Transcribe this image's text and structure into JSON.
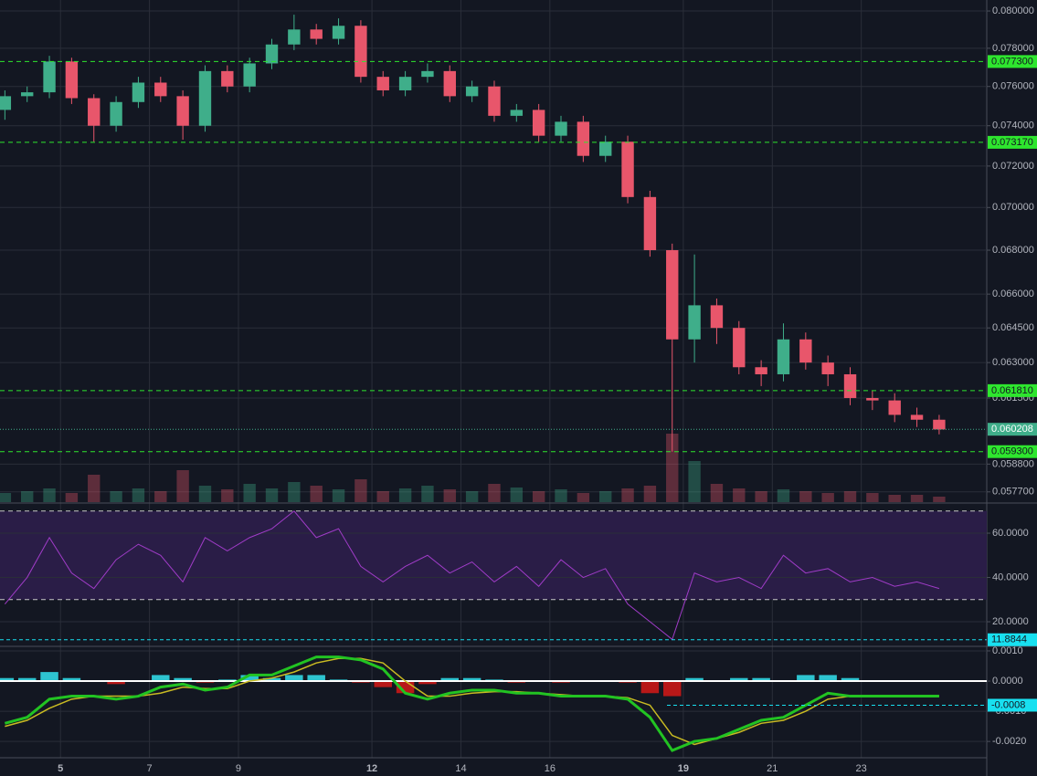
{
  "chart_data": [
    {
      "type": "candlestick",
      "log": true,
      "grid": true,
      "x": [
        3.75,
        4.25,
        4.75,
        5.25,
        5.75,
        6.25,
        6.75,
        7.25,
        7.75,
        8.25,
        8.75,
        9.25,
        9.75,
        10.25,
        10.75,
        11.25,
        11.75,
        12.25,
        12.75,
        13.25,
        13.75,
        14.25,
        14.75,
        15.25,
        15.75,
        16.25,
        16.75,
        17.25,
        17.75,
        18.25,
        18.75,
        19.25,
        19.75,
        20.25,
        20.75,
        21.25,
        21.75,
        22.25,
        22.75,
        23.25,
        23.75,
        24.25,
        24.75
      ],
      "open": [
        0.0748,
        0.0755,
        0.0757,
        0.0773,
        0.0754,
        0.074,
        0.0752,
        0.0762,
        0.0755,
        0.074,
        0.0768,
        0.076,
        0.0772,
        0.0782,
        0.079,
        0.0785,
        0.0792,
        0.0765,
        0.0758,
        0.0765,
        0.0768,
        0.0755,
        0.076,
        0.0745,
        0.0748,
        0.0735,
        0.0742,
        0.0725,
        0.0732,
        0.0705,
        0.068,
        0.064,
        0.0655,
        0.0645,
        0.0628,
        0.0625,
        0.064,
        0.063,
        0.0625,
        0.0615,
        0.0614,
        0.0608,
        0.0606
      ],
      "high": [
        0.0758,
        0.076,
        0.0776,
        0.0775,
        0.0756,
        0.0755,
        0.0765,
        0.0765,
        0.0758,
        0.0771,
        0.0771,
        0.0775,
        0.0785,
        0.0798,
        0.0793,
        0.0796,
        0.0795,
        0.0768,
        0.0768,
        0.0772,
        0.0771,
        0.0763,
        0.0763,
        0.0751,
        0.0751,
        0.0745,
        0.0745,
        0.0735,
        0.0735,
        0.0708,
        0.0683,
        0.0678,
        0.0658,
        0.0648,
        0.0631,
        0.0647,
        0.0643,
        0.0633,
        0.0628,
        0.0618,
        0.0617,
        0.0611,
        0.0608
      ],
      "low": [
        0.0743,
        0.0752,
        0.0754,
        0.0751,
        0.0732,
        0.0737,
        0.0749,
        0.0752,
        0.0733,
        0.0737,
        0.0757,
        0.0757,
        0.0769,
        0.0779,
        0.0782,
        0.0782,
        0.0762,
        0.0755,
        0.0755,
        0.0762,
        0.0752,
        0.0752,
        0.0742,
        0.0742,
        0.0732,
        0.0732,
        0.0722,
        0.0722,
        0.0702,
        0.0677,
        0.0593,
        0.063,
        0.0638,
        0.0625,
        0.062,
        0.0622,
        0.0627,
        0.062,
        0.0612,
        0.061,
        0.0605,
        0.0603,
        0.06
      ],
      "close": [
        0.0755,
        0.0757,
        0.0773,
        0.0754,
        0.074,
        0.0752,
        0.0762,
        0.0755,
        0.074,
        0.0768,
        0.076,
        0.0772,
        0.0782,
        0.079,
        0.0785,
        0.0792,
        0.0765,
        0.0758,
        0.0765,
        0.0768,
        0.0755,
        0.076,
        0.0745,
        0.0748,
        0.0735,
        0.0742,
        0.0725,
        0.0732,
        0.0705,
        0.068,
        0.064,
        0.0655,
        0.0645,
        0.0628,
        0.0625,
        0.064,
        0.063,
        0.0625,
        0.0615,
        0.0614,
        0.0608,
        0.0606,
        0.0602
      ],
      "volume": [
        10,
        12,
        15,
        10,
        30,
        12,
        15,
        12,
        35,
        18,
        14,
        20,
        15,
        22,
        18,
        14,
        25,
        12,
        15,
        18,
        14,
        12,
        20,
        16,
        12,
        14,
        10,
        12,
        15,
        18,
        75,
        45,
        20,
        15,
        12,
        14,
        12,
        10,
        12,
        10,
        8,
        8,
        6
      ],
      "vlim": [
        0,
        100
      ],
      "up_color": "#3fae8a",
      "down_color": "#e8566b",
      "level_color": "#2ee62e",
      "last_color": "#3fae8a",
      "xlim": [
        3.64,
        25.82
      ],
      "xticks": [
        5,
        7,
        9,
        12,
        14,
        16,
        19,
        21,
        23
      ],
      "xticks_bold": [
        5,
        12,
        19
      ],
      "ylim": [
        0.0573,
        0.0806
      ],
      "yticks": [
        {
          "value": 0.08,
          "label": "0.080000"
        },
        {
          "value": 0.078,
          "label": "0.078000"
        },
        {
          "value": 0.076,
          "label": "0.076000"
        },
        {
          "value": 0.074,
          "label": "0.074000"
        },
        {
          "value": 0.072,
          "label": "0.072000"
        },
        {
          "value": 0.07,
          "label": "0.070000"
        },
        {
          "value": 0.068,
          "label": "0.068000"
        },
        {
          "value": 0.066,
          "label": "0.066000"
        },
        {
          "value": 0.0645,
          "label": "0.064500"
        },
        {
          "value": 0.063,
          "label": "0.063000"
        },
        {
          "value": 0.0615,
          "label": "0.061500"
        },
        {
          "value": 0.0588,
          "label": "0.058800"
        },
        {
          "value": 0.0577,
          "label": "0.057700"
        }
      ],
      "levels": [
        {
          "value": 0.0773,
          "label": "0.077300"
        },
        {
          "value": 0.07317,
          "label": "0.073170"
        },
        {
          "value": 0.06181,
          "label": "0.061810"
        },
        {
          "value": 0.0593,
          "label": "0.059300"
        }
      ],
      "last": {
        "value": 0.060208,
        "label": "0.060208"
      }
    },
    {
      "type": "line",
      "color": "#a03cc8",
      "band_color": "#2a1d47",
      "values": [
        28,
        40,
        58,
        42,
        35,
        48,
        55,
        50,
        38,
        58,
        52,
        58,
        62,
        70,
        58,
        62,
        45,
        38,
        45,
        50,
        42,
        47,
        38,
        45,
        36,
        48,
        40,
        44,
        28,
        20,
        12,
        42,
        38,
        40,
        35,
        50,
        42,
        44,
        38,
        40,
        36,
        38,
        35
      ],
      "ylim": [
        9.3,
        73.2
      ],
      "yticks": [
        {
          "value": 60,
          "label": "60.0000"
        },
        {
          "value": 40,
          "label": "40.0000"
        },
        {
          "value": 20,
          "label": "20.0000"
        }
      ],
      "bands": [
        70,
        30
      ],
      "marker": 11.8844,
      "marker_color": "#18e0f0"
    },
    {
      "type": "macd",
      "macd_color": "#22c322",
      "signal_color": "#c9bb22",
      "pos_color": "#2ec4d0",
      "neg_color": "#b81818",
      "marker_color": "#18e0f0",
      "macd": [
        -0.0014,
        -0.0012,
        -0.0006,
        -0.0005,
        -0.0005,
        -0.0006,
        -0.0005,
        -0.0002,
        -0.0001,
        -0.0003,
        -0.0002,
        0.0002,
        0.0002,
        0.0005,
        0.0008,
        0.0008,
        0.0007,
        0.0004,
        -0.0004,
        -0.0006,
        -0.0004,
        -0.0003,
        -0.0003,
        -0.0004,
        -0.0004,
        -0.0005,
        -0.0005,
        -0.0005,
        -0.0006,
        -0.0012,
        -0.0023,
        -0.002,
        -0.0019,
        -0.0016,
        -0.0013,
        -0.0012,
        -0.0008,
        -0.0004,
        -0.0005,
        -0.0005,
        -0.0005,
        -0.0005,
        -0.0005
      ],
      "signal": [
        -0.0015,
        -0.0013,
        -0.0009,
        -0.0006,
        -0.0005,
        -0.0005,
        -0.0005,
        -0.0004,
        -0.0002,
        -0.00025,
        -0.00025,
        0,
        0.0001,
        0.0003,
        0.0006,
        0.00075,
        0.00075,
        0.0006,
        0,
        -0.0005,
        -0.0005,
        -0.0004,
        -0.00035,
        -0.00035,
        -0.0004,
        -0.00045,
        -0.0005,
        -0.0005,
        -0.00055,
        -0.0008,
        -0.0018,
        -0.0021,
        -0.0019,
        -0.0017,
        -0.0014,
        -0.0013,
        -0.001,
        -0.0006,
        -0.0005,
        -0.0005,
        -0.0005,
        -0.0005,
        -0.0005
      ],
      "histogram": [
        0.0001,
        0.0001,
        0.0003,
        0.0001,
        0,
        -0.0001,
        0,
        0.0002,
        0.0001,
        -5e-05,
        5e-05,
        0.0002,
        0.0001,
        0.0002,
        0.0002,
        5e-05,
        -5e-05,
        -0.0002,
        -0.0004,
        -0.0001,
        0.0001,
        0.0001,
        5e-05,
        -5e-05,
        0,
        -5e-05,
        0,
        0,
        -5e-05,
        -0.0004,
        -0.0005,
        0.0001,
        0,
        0.0001,
        0.0001,
        0,
        0.0002,
        0.0002,
        0.0001,
        0,
        0,
        0,
        0
      ],
      "ylim": [
        -0.00254,
        0.00112
      ],
      "yticks": [
        {
          "value": 0.001,
          "label": "0.0010"
        },
        {
          "value": 0,
          "label": "0.0000"
        },
        {
          "value": -0.001,
          "label": "-0.0010"
        },
        {
          "value": -0.002,
          "label": "-0.0020"
        }
      ],
      "marker": -0.0008
    }
  ]
}
